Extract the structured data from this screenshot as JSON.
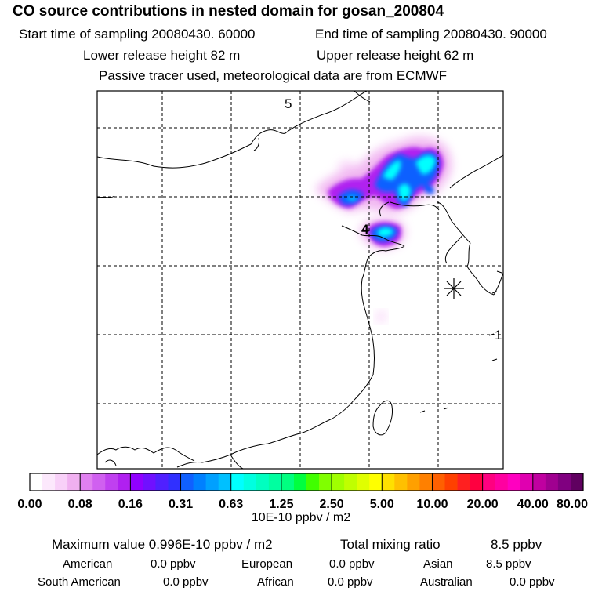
{
  "header": {
    "title": "CO  source contributions in nested domain for gosan_200804",
    "start_time": "Start time of sampling 20080430. 60000",
    "end_time": "End time of sampling 20080430. 90000",
    "lower_release": "Lower release height   82 m",
    "upper_release": "Upper release height   62 m",
    "tracer_note": "Passive tracer used, meteorological data are from ECMWF"
  },
  "chart_data": {
    "type": "heatmap",
    "title": "CO  source contributions in nested domain for gosan_200804",
    "colorbar": {
      "labels": [
        "0.00",
        "0.08",
        "0.16",
        "0.31",
        "0.63",
        "1.25",
        "2.50",
        "5.00",
        "10.00",
        "20.00",
        "40.00",
        "80.00"
      ],
      "unit": "10E-10 ppbv / m2",
      "colors": [
        "#ffffff",
        "#fce8fc",
        "#f8d0f8",
        "#f0b0f0",
        "#e080f0",
        "#d060f0",
        "#c040f0",
        "#b020f0",
        "#9000ff",
        "#7010ff",
        "#5020ff",
        "#3030ff",
        "#1060ff",
        "#0080ff",
        "#00a0ff",
        "#00c0ff",
        "#00ffff",
        "#00ffe0",
        "#00ffc0",
        "#00ffa0",
        "#00ff80",
        "#00ff40",
        "#40ff00",
        "#80ff00",
        "#a0ff00",
        "#c0ff00",
        "#e0ff00",
        "#ffff00",
        "#ffe000",
        "#ffc000",
        "#ffa000",
        "#ff8000",
        "#ff6000",
        "#ff4000",
        "#ff2020",
        "#ff0040",
        "#ff0080",
        "#ff00a0",
        "#ff00c0",
        "#e000b0",
        "#c000a0",
        "#a00090",
        "#800080",
        "#600060"
      ]
    },
    "map_labels": [
      {
        "text": "5",
        "label": "day-5-marker"
      },
      {
        "text": "4",
        "label": "day-4-marker"
      },
      {
        "text": "1",
        "label": "day-1-marker"
      }
    ],
    "receptor": "gosan",
    "colors": {
      "frame": "#000000",
      "grid": "#000000",
      "coast": "#000000"
    }
  },
  "stats": {
    "max_label": "Maximum value  0.996E-10 ppbv / m2",
    "total_label": "Total mixing ratio",
    "total_value": "8.5 ppbv"
  },
  "regions": [
    {
      "name": "American",
      "value": "0.0 ppbv"
    },
    {
      "name": "European",
      "value": "0.0 ppbv"
    },
    {
      "name": "Asian",
      "value": "8.5 ppbv"
    },
    {
      "name": "South American",
      "value": "0.0 ppbv"
    },
    {
      "name": "African",
      "value": "0.0 ppbv"
    },
    {
      "name": "Australian",
      "value": "0.0 ppbv"
    }
  ]
}
